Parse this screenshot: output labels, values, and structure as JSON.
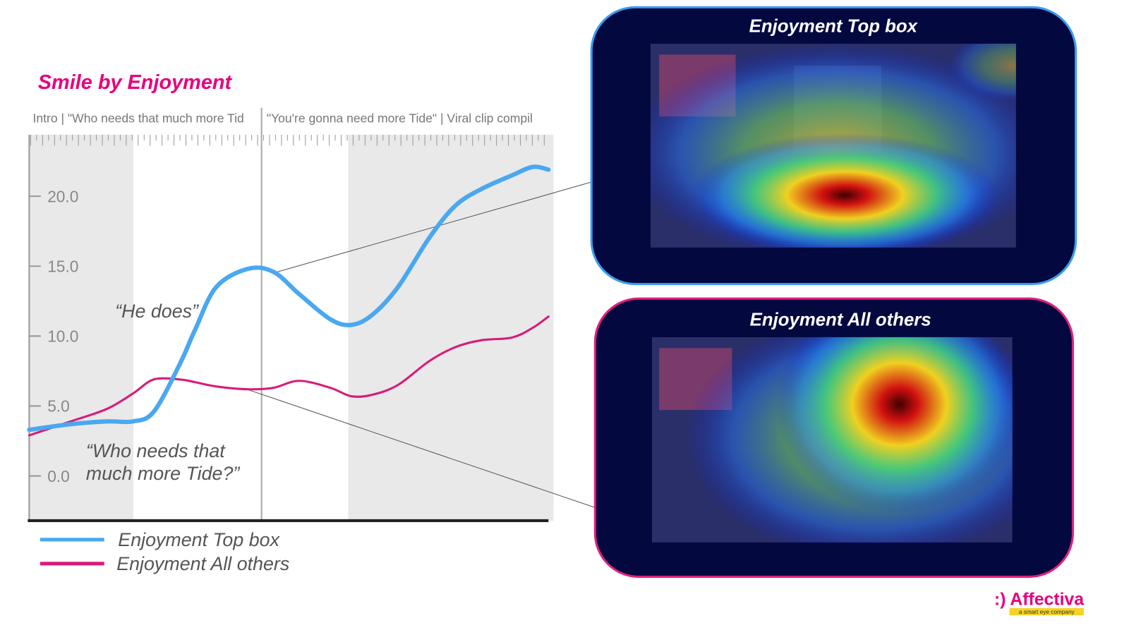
{
  "chart_data": {
    "type": "line",
    "title": "Smile by Enjoyment",
    "scene_labels": [
      "Intro | \"Who needs that much more Tid",
      "\"You're gonna need more Tide\" | Viral clip compil"
    ],
    "x": [
      0,
      8,
      15,
      20,
      24,
      29,
      32,
      36,
      42,
      47,
      52,
      58,
      62,
      66,
      71,
      77,
      82,
      87,
      93,
      97,
      100
    ],
    "xlim": [
      0,
      100
    ],
    "ylim": [
      -3.2,
      24.4
    ],
    "yticks": [
      {
        "value": 0,
        "label": "0.0"
      },
      {
        "value": 5,
        "label": "5.0"
      },
      {
        "value": 10,
        "label": "10.0"
      },
      {
        "value": 15,
        "label": "15.0"
      },
      {
        "value": 20,
        "label": "20.0"
      }
    ],
    "series": [
      {
        "name": "Enjoyment Top box",
        "color": "#4aa8f0",
        "values": [
          3.3,
          3.7,
          3.9,
          3.9,
          4.6,
          8.0,
          10.5,
          13.5,
          14.8,
          14.6,
          13.0,
          11.2,
          10.8,
          11.5,
          13.5,
          17.0,
          19.3,
          20.5,
          21.5,
          22.1,
          21.9
        ]
      },
      {
        "name": "Enjoyment All others",
        "color": "#d81b7a",
        "values": [
          2.9,
          3.9,
          4.8,
          5.9,
          6.9,
          6.9,
          6.7,
          6.4,
          6.2,
          6.3,
          6.8,
          6.3,
          5.7,
          5.8,
          6.5,
          8.2,
          9.2,
          9.7,
          9.9,
          10.6,
          11.4
        ]
      }
    ],
    "annotations": [
      [
        "“He does”"
      ],
      [
        "“Who needs that",
        "much more Tide?”"
      ]
    ]
  },
  "heatmaps": [
    {
      "title": "Enjoyment Top box"
    },
    {
      "title": "Enjoyment All others"
    }
  ],
  "logo": {
    "name": ":) Affectiva",
    "tagline": "a smart eye company"
  }
}
